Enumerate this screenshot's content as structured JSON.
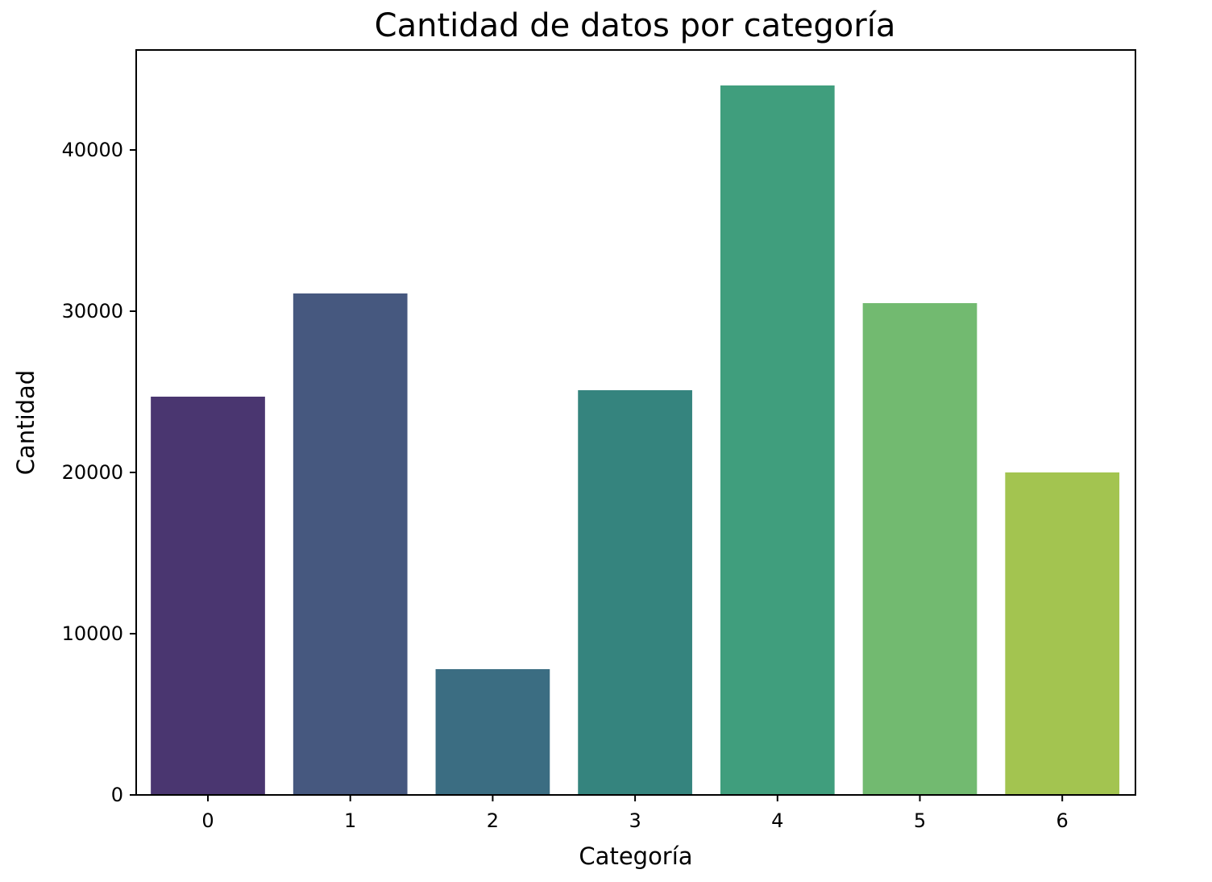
{
  "chart_data": {
    "type": "bar",
    "title": "Cantidad de datos por categoría",
    "xlabel": "Categoría",
    "ylabel": "Cantidad",
    "categories": [
      "0",
      "1",
      "2",
      "3",
      "4",
      "5",
      "6"
    ],
    "values": [
      24700,
      31100,
      7800,
      25100,
      44000,
      30500,
      20000
    ],
    "colors": [
      "#4a3670",
      "#46587f",
      "#3b6d82",
      "#35847e",
      "#409e7d",
      "#72ba70",
      "#a3c450"
    ],
    "ylim": [
      0,
      46200
    ],
    "yticks": [
      0,
      10000,
      20000,
      30000,
      40000
    ],
    "ytick_labels": [
      "0",
      "10000",
      "20000",
      "30000",
      "40000"
    ],
    "grid": false,
    "legend": "none"
  }
}
